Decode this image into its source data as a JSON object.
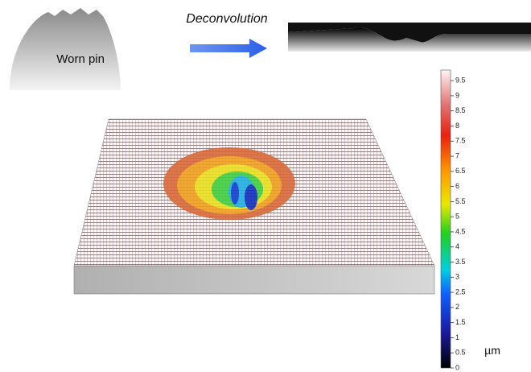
{
  "labels": {
    "pin": "Worn pin",
    "arrow": "Deconvolution"
  },
  "colorbar": {
    "unit": "µm",
    "range": [
      0,
      9.85
    ],
    "ticks": [
      0,
      0.5,
      1,
      1.5,
      2,
      2.5,
      3,
      3.5,
      4,
      4.5,
      5,
      5.5,
      6,
      6.5,
      7,
      7.5,
      8,
      8.5,
      9,
      9.5
    ]
  }
}
